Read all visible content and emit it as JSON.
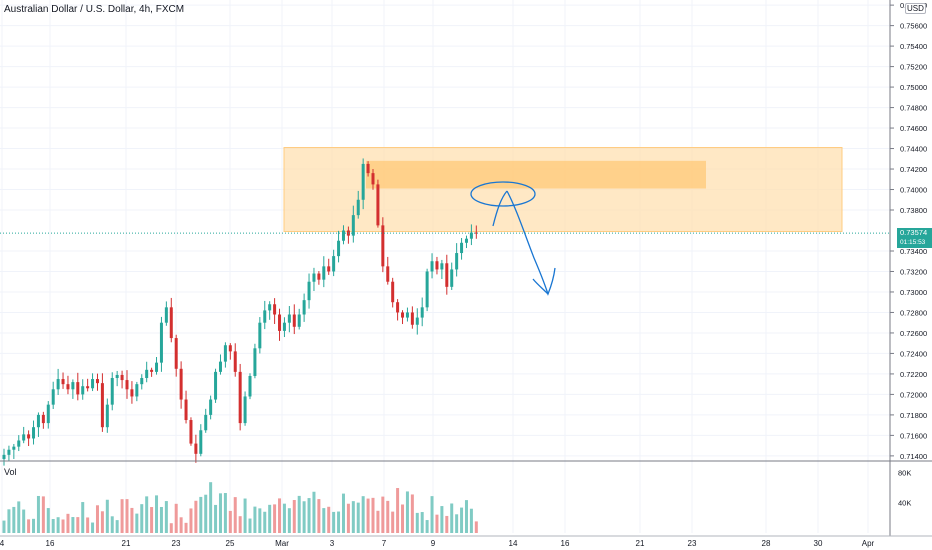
{
  "title": "Australian Dollar / U.S. Dollar, 4h, FXCM",
  "currency_badge": "USD",
  "volume_label": "Vol",
  "last_price_label": "0.73574",
  "countdown": "01:15:53",
  "colors": {
    "up": "#26a69a",
    "down": "#d32f2f",
    "vol_up": "#80cbc4",
    "vol_down": "#ef9a9a",
    "zone_outer": "#ffe0b2",
    "zone_inner": "#ffcc80",
    "drawing": "#1976d2"
  },
  "chart_data": {
    "type": "candlestick",
    "title": "Australian Dollar / U.S. Dollar, 4h, FXCM",
    "ylim": [
      0.7135,
      0.7585
    ],
    "y_ticks": [
      "0.71400",
      "0.71600",
      "0.71800",
      "0.72000",
      "0.72200",
      "0.72400",
      "0.72600",
      "0.72800",
      "0.73000",
      "0.73200",
      "0.73400",
      "0.73800",
      "0.74000",
      "0.74200",
      "0.74400",
      "0.74600",
      "0.74800",
      "0.75000",
      "0.75200",
      "0.75400",
      "0.75600",
      "0.75800"
    ],
    "x_ticks": [
      "4",
      "16",
      "21",
      "23",
      "25",
      "Mar",
      "3",
      "7",
      "9",
      "14",
      "16",
      "21",
      "23",
      "28",
      "30",
      "Apr"
    ],
    "volume_ticks": [
      "80K",
      "40K"
    ],
    "volume_ylim": [
      0,
      95000
    ],
    "zones": [
      {
        "name": "supply zone",
        "low": 0.7359,
        "high": 0.7441
      },
      {
        "name": "inner zone",
        "low": 0.7401,
        "high": 0.7428
      }
    ],
    "last_price": 0.73574,
    "closes": [
      0.7141,
      0.7146,
      0.7149,
      0.7155,
      0.7161,
      0.7157,
      0.7168,
      0.718,
      0.7172,
      0.719,
      0.7205,
      0.7215,
      0.721,
      0.7205,
      0.7212,
      0.72,
      0.7208,
      0.7206,
      0.7215,
      0.7211,
      0.7168,
      0.719,
      0.7216,
      0.7219,
      0.7214,
      0.7205,
      0.7198,
      0.721,
      0.7216,
      0.7224,
      0.7222,
      0.7231,
      0.727,
      0.7285,
      0.7255,
      0.7225,
      0.7195,
      0.7175,
      0.7152,
      0.7142,
      0.7165,
      0.718,
      0.7195,
      0.7222,
      0.7232,
      0.7248,
      0.7242,
      0.7222,
      0.7172,
      0.7198,
      0.7218,
      0.7245,
      0.727,
      0.7282,
      0.7288,
      0.7278,
      0.7262,
      0.727,
      0.7278,
      0.7266,
      0.7278,
      0.7292,
      0.731,
      0.7318,
      0.7312,
      0.7325,
      0.732,
      0.7335,
      0.735,
      0.736,
      0.7355,
      0.7375,
      0.739,
      0.7425,
      0.7416,
      0.7405,
      0.7365,
      0.7325,
      0.731,
      0.729,
      0.728,
      0.7275,
      0.728,
      0.7268,
      0.7275,
      0.7285,
      0.732,
      0.733,
      0.7322,
      0.7328,
      0.7305,
      0.7322,
      0.7338,
      0.7348,
      0.7352,
      0.7358,
      0.7357
    ]
  }
}
